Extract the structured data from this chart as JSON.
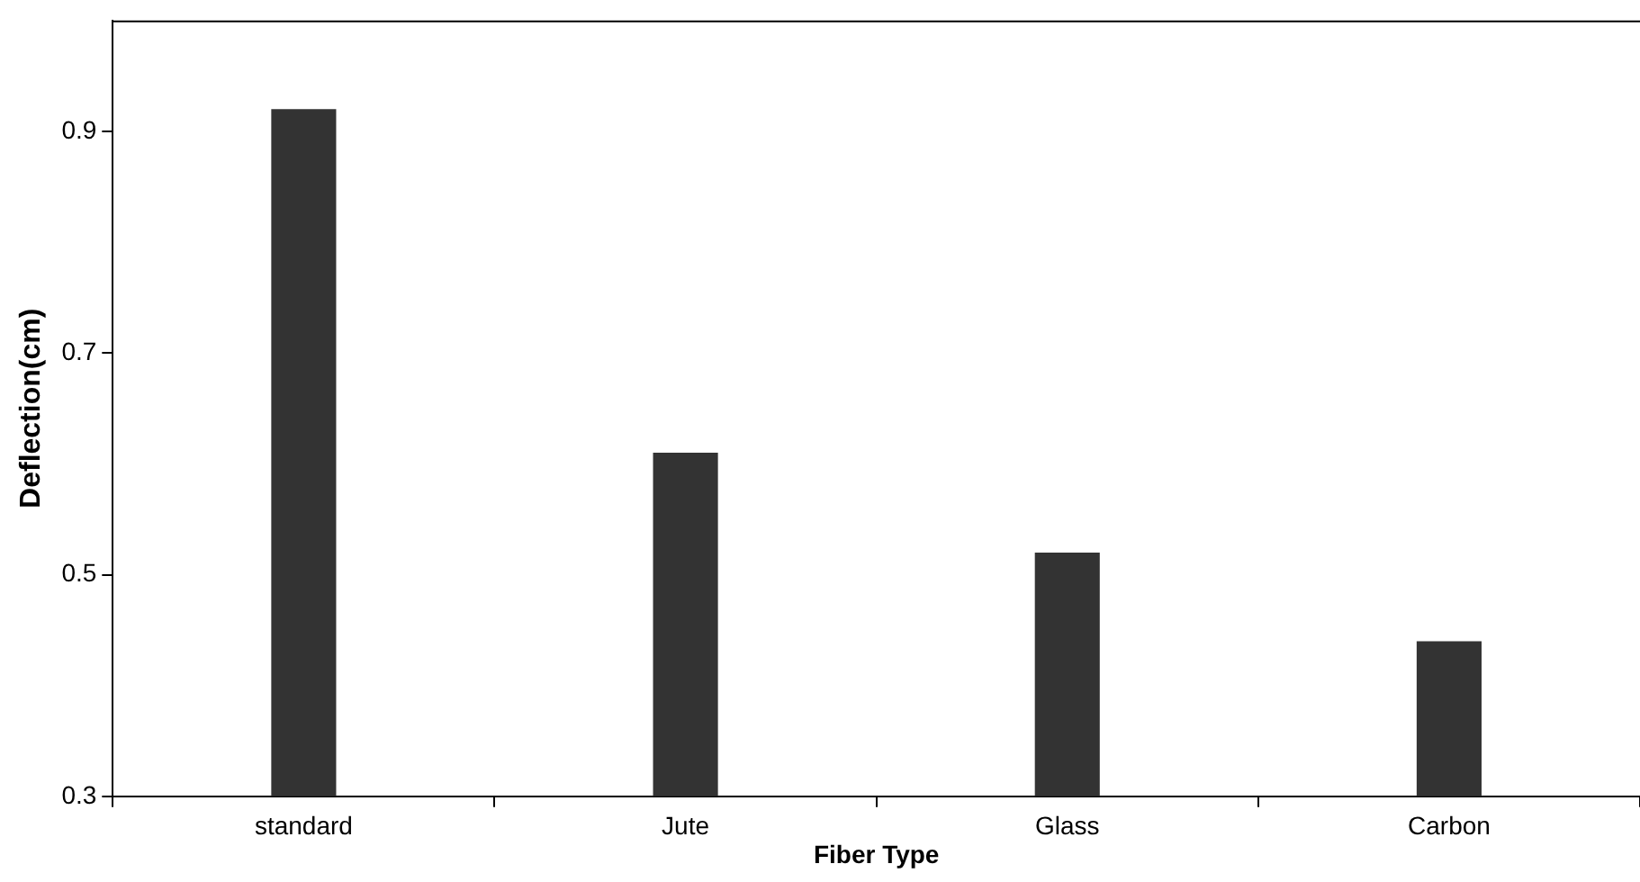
{
  "chart_data": {
    "type": "bar",
    "xlabel": "Fiber Type",
    "ylabel": "Deflection(cm)",
    "categories": [
      "standard",
      "Jute",
      "Glass",
      "Carbon"
    ],
    "values": [
      0.92,
      0.61,
      0.52,
      0.44
    ],
    "color": "#333333",
    "ylim": [
      0.3,
      1.0
    ],
    "yticks": [
      0.3,
      0.5,
      0.7,
      0.9
    ],
    "grid": false,
    "legend": false
  }
}
